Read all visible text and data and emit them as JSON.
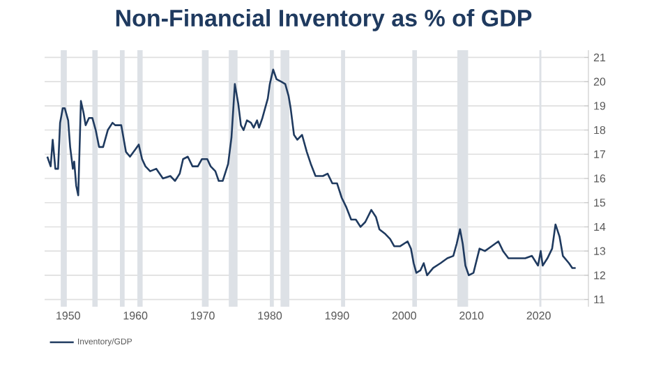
{
  "chart_data": {
    "type": "line",
    "title": "Non-Financial Inventory as % of GDP",
    "x": [
      1946.9,
      1947.4,
      1947.7,
      1948.1,
      1948.5,
      1948.8,
      1949.2,
      1949.5,
      1950,
      1950.3,
      1950.7,
      1950.9,
      1951.2,
      1951.5,
      1951.9,
      1952.3,
      1952.6,
      1953.1,
      1953.6,
      1954.1,
      1954.6,
      1955.2,
      1955.9,
      1956.6,
      1957.0,
      1957.9,
      1958.6,
      1959.2,
      1960,
      1960.5,
      1961.0,
      1961.5,
      1962.2,
      1963.1,
      1964.1,
      1965.2,
      1965.9,
      1966.6,
      1967.1,
      1967.8,
      1968.5,
      1969.3,
      1969.9,
      1970.7,
      1971.2,
      1971.9,
      1972.4,
      1973.0,
      1973.8,
      1974.3,
      1974.8,
      1975.3,
      1975.7,
      1976.1,
      1976.6,
      1977.2,
      1977.6,
      1978.1,
      1978.4,
      1978.9,
      1979.7,
      1980.0,
      1980.5,
      1981.0,
      1981.7,
      1982.3,
      1982.8,
      1983.1,
      1983.6,
      1984.1,
      1984.8,
      1985.5,
      1986.1,
      1986.8,
      1987.9,
      1988.6,
      1989.3,
      1990,
      1990.7,
      1991.4,
      1992.1,
      1992.8,
      1993.5,
      1994.2,
      1995.1,
      1995.8,
      1996.3,
      1997.2,
      1997.9,
      1998.5,
      1999.4,
      2000.5,
      2001.0,
      2001.4,
      2001.8,
      2002.4,
      2002.9,
      2003.4,
      2004.3,
      2005.4,
      2006.4,
      2007.3,
      2007.8,
      2008.3,
      2008.7,
      2009.1,
      2009.6,
      2010.3,
      2011.2,
      2012.0,
      2013.0,
      2014.0,
      2014.7,
      2015.5,
      2017.0,
      2018.0,
      2019.0,
      2019.9,
      2020.3,
      2020.6,
      2021.3,
      2022.0,
      2022.5,
      2023.1,
      2023.6,
      2024.5,
      2025.0,
      2025.5
    ],
    "series": [
      {
        "name": "Inventory/GDP",
        "color": "#1f3a5f",
        "values": [
          16.9,
          16.5,
          17.6,
          16.4,
          16.4,
          18.3,
          18.9,
          18.9,
          18.4,
          17.3,
          16.4,
          16.7,
          15.7,
          15.3,
          19.2,
          18.7,
          18.2,
          18.5,
          18.5,
          18.0,
          17.3,
          17.3,
          18.0,
          18.3,
          18.2,
          18.2,
          17.1,
          16.9,
          17.2,
          17.4,
          16.8,
          16.5,
          16.3,
          16.4,
          16.0,
          16.1,
          15.9,
          16.2,
          16.8,
          16.9,
          16.5,
          16.5,
          16.8,
          16.8,
          16.5,
          16.3,
          15.9,
          15.9,
          16.6,
          17.7,
          19.9,
          19.1,
          18.2,
          18.0,
          18.4,
          18.3,
          18.1,
          18.4,
          18.1,
          18.5,
          19.3,
          19.9,
          20.5,
          20.1,
          20.0,
          19.9,
          19.4,
          18.9,
          17.8,
          17.6,
          17.8,
          17.1,
          16.6,
          16.1,
          16.1,
          16.2,
          15.8,
          15.8,
          15.2,
          14.8,
          14.3,
          14.3,
          14.0,
          14.2,
          14.7,
          14.4,
          13.9,
          13.7,
          13.5,
          13.2,
          13.2,
          13.4,
          13.1,
          12.5,
          12.1,
          12.2,
          12.5,
          12.0,
          12.3,
          12.5,
          12.7,
          12.8,
          13.3,
          13.9,
          13.3,
          12.4,
          12.0,
          12.1,
          13.1,
          13.0,
          13.2,
          13.4,
          13.0,
          12.7,
          12.7,
          12.7,
          12.8,
          12.4,
          13.0,
          12.4,
          12.7,
          13.1,
          14.1,
          13.6,
          12.8,
          12.5,
          12.3,
          12.3
        ]
      }
    ],
    "xlim": [
      1946.5,
      2027.4
    ],
    "xticks": [
      1950,
      1960,
      1970,
      1980,
      1990,
      2000,
      2010,
      2020
    ],
    "ylim": [
      10.7,
      21.3
    ],
    "yticks": [
      11,
      12,
      13,
      14,
      15,
      16,
      17,
      18,
      19,
      20,
      21
    ],
    "grid": "y",
    "legend": "bottom left",
    "line_style": "solid",
    "marker": "none",
    "bands": [
      {
        "axis": "x",
        "from": 1948.9,
        "to": 1949.8,
        "color": "#dde1e6"
      },
      {
        "axis": "x",
        "from": 1953.6,
        "to": 1954.4,
        "color": "#dde1e6"
      },
      {
        "axis": "x",
        "from": 1957.7,
        "to": 1958.4,
        "color": "#dde1e6"
      },
      {
        "axis": "x",
        "from": 1960.3,
        "to": 1961.1,
        "color": "#dde1e6"
      },
      {
        "axis": "x",
        "from": 1969.9,
        "to": 1970.9,
        "color": "#dde1e6"
      },
      {
        "axis": "x",
        "from": 1973.9,
        "to": 1975.2,
        "color": "#dde1e6"
      },
      {
        "axis": "x",
        "from": 1980.0,
        "to": 1980.6,
        "color": "#dde1e6"
      },
      {
        "axis": "x",
        "from": 1981.6,
        "to": 1982.9,
        "color": "#dde1e6"
      },
      {
        "axis": "x",
        "from": 1990.6,
        "to": 1991.2,
        "color": "#dde1e6"
      },
      {
        "axis": "x",
        "from": 2001.2,
        "to": 2001.9,
        "color": "#dde1e6"
      },
      {
        "axis": "x",
        "from": 2007.9,
        "to": 2009.5,
        "color": "#dde1e6"
      },
      {
        "axis": "x",
        "from": 2020.1,
        "to": 2020.4,
        "color": "#dde1e6"
      }
    ]
  }
}
